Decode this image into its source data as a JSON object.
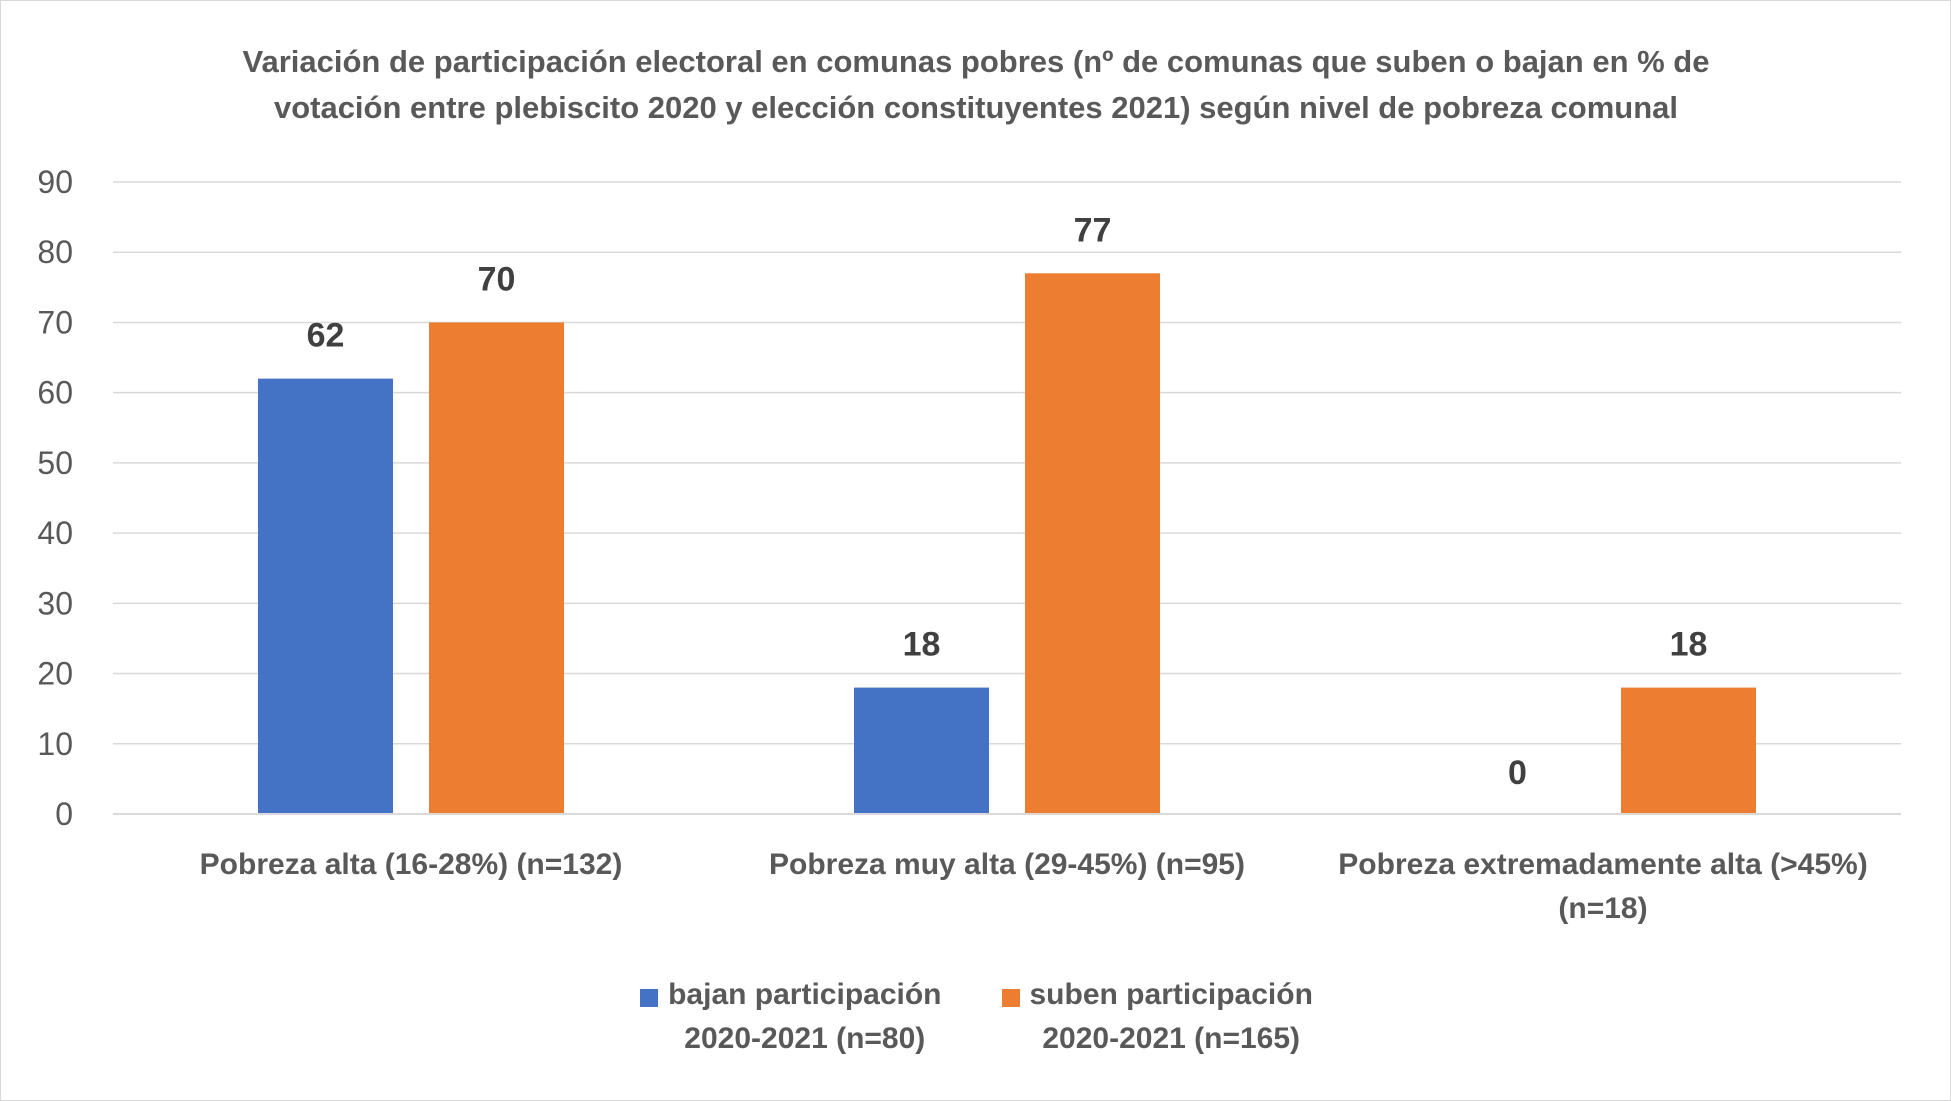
{
  "chart_data": {
    "type": "bar",
    "title_lines": [
      "Variación de participación electoral en comunas pobres (nº de comunas que suben o bajan en % de",
      "votación entre plebiscito 2020 y elección constituyentes 2021) según nivel de pobreza comunal"
    ],
    "categories": [
      [
        "Pobreza alta (16-28%) (n=132)"
      ],
      [
        "Pobreza muy alta (29-45%) (n=95)"
      ],
      [
        "Pobreza extremadamente alta (>45%)",
        "(n=18)"
      ]
    ],
    "series": [
      {
        "name_lines": [
          "bajan participación",
          "2020-2021 (n=80)"
        ],
        "color": "#4472C4",
        "values": [
          62,
          18,
          0
        ]
      },
      {
        "name_lines": [
          "suben participación",
          "2020-2021 (n=165)"
        ],
        "color": "#ED7D31",
        "values": [
          70,
          77,
          18
        ]
      }
    ],
    "ylim": [
      0,
      90
    ],
    "yticks": [
      0,
      10,
      20,
      30,
      40,
      50,
      60,
      70,
      80,
      90
    ],
    "grid": true,
    "legend_position": "bottom",
    "data_labels": true
  }
}
